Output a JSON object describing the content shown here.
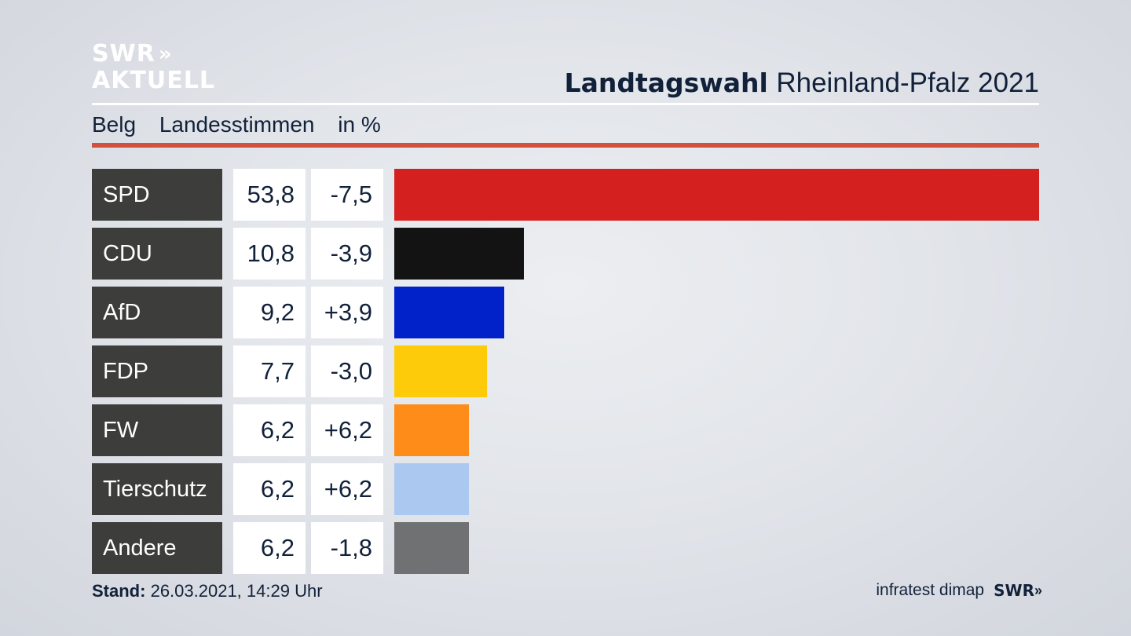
{
  "logo": {
    "line1": "SWR",
    "chevrons": "»",
    "line2": "AKTUELL"
  },
  "title": {
    "bold": "Landtagswahl",
    "rest": "Rheinland-Pfalz 2021"
  },
  "subtitle": {
    "place": "Belg",
    "measure": "Landesstimmen",
    "unit": "in %"
  },
  "colors": {
    "accent_rule": "#d3503f",
    "label_bg": "#3d3d3b",
    "value_bg": "#ffffff"
  },
  "chart_data": {
    "type": "bar",
    "categories": [
      "SPD",
      "CDU",
      "AfD",
      "FDP",
      "FW",
      "Tierschutz",
      "Andere"
    ],
    "values": [
      53.8,
      10.8,
      9.2,
      7.7,
      6.2,
      6.2,
      6.2
    ],
    "value_labels": [
      "53,8",
      "10,8",
      "9,2",
      "7,7",
      "6,2",
      "6,2",
      "6,2"
    ],
    "change_labels": [
      "-7,5",
      "-3,9",
      "+3,9",
      "-3,0",
      "+6,2",
      "+6,2",
      "-1,8"
    ],
    "colors": [
      "#d52020",
      "#131313",
      "#0022c8",
      "#fdcb0a",
      "#fd8c18",
      "#abc8f0",
      "#707172"
    ],
    "orientation": "horizontal",
    "xlim": [
      0,
      53.8
    ],
    "grid": false,
    "legend": "none"
  },
  "footer": {
    "stand_label": "Stand:",
    "stand_value": "26.03.2021, 14:29 Uhr",
    "source": "infratest dimap",
    "brand": "SWR",
    "brand_chevrons": "»"
  }
}
